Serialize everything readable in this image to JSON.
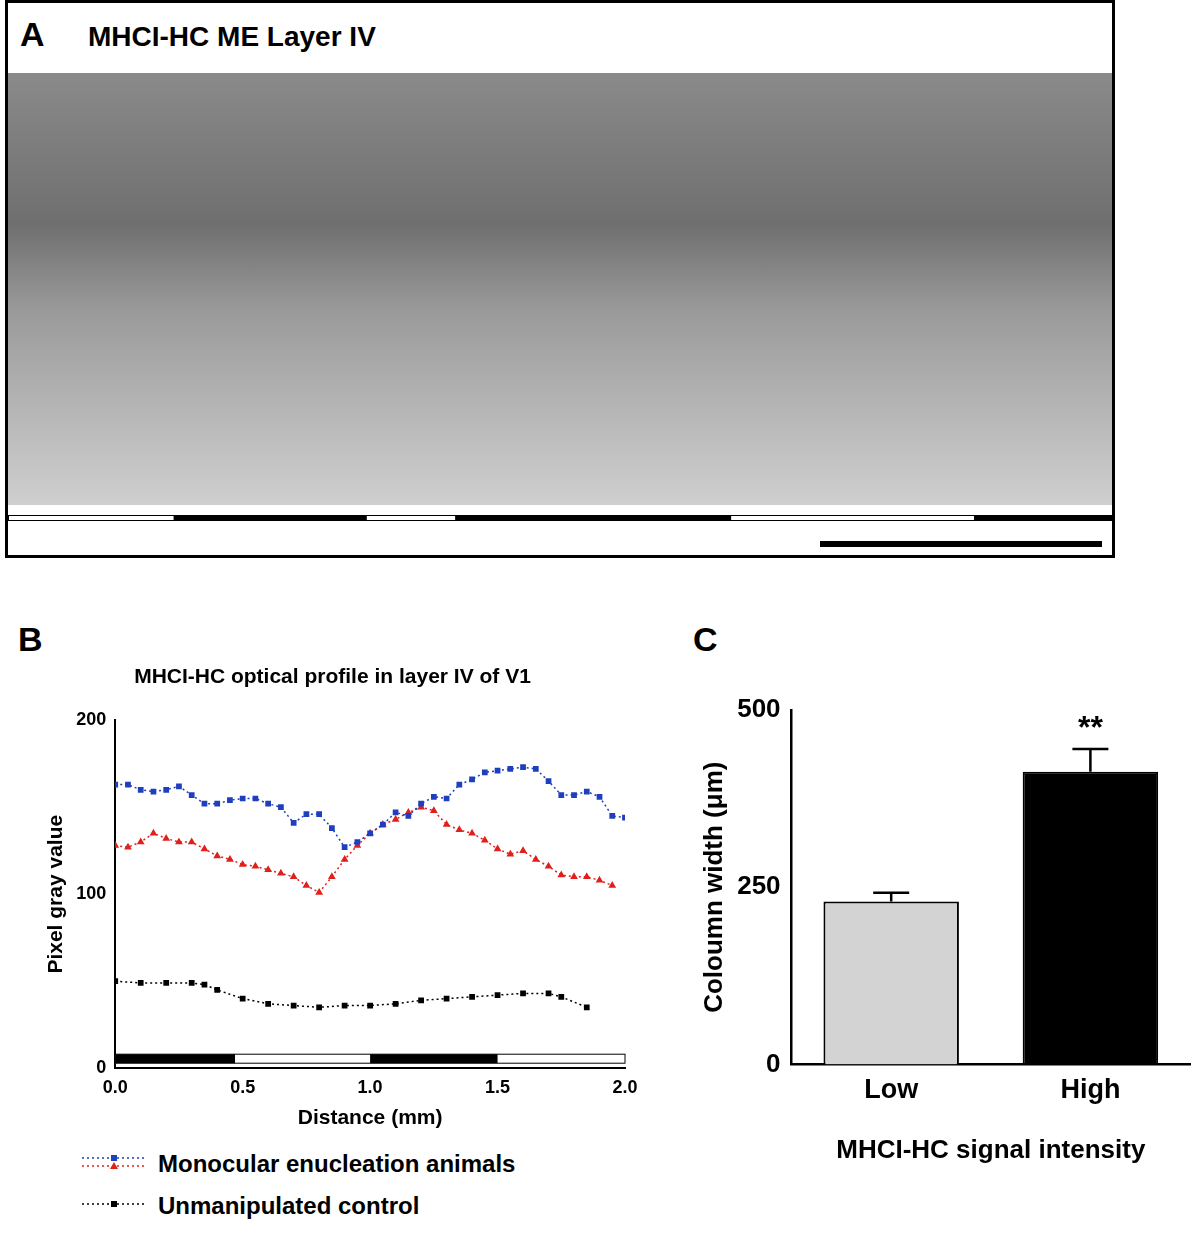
{
  "panel_a": {
    "label": "A",
    "title": "MHCI-HC ME Layer IV",
    "dark_bands_fraction": [
      [
        0.15,
        0.325
      ],
      [
        0.405,
        0.655
      ],
      [
        0.875,
        1.0
      ]
    ]
  },
  "chart_data": [
    {
      "label": "B",
      "type": "line",
      "title": "MHCI-HC optical profile in layer IV of V1",
      "x_label": "Distance (mm)",
      "y_label": "Pixel gray value",
      "xlim": [
        0,
        2
      ],
      "xticks": [
        {
          "value": 0,
          "label": "0.0"
        },
        {
          "value": 0.5,
          "label": "0.5"
        },
        {
          "value": 1,
          "label": "1.0"
        },
        {
          "value": 1.5,
          "label": "1.5"
        },
        {
          "value": 2,
          "label": "2.0"
        }
      ],
      "ylim": [
        0,
        200
      ],
      "yticks": [
        0,
        100,
        200
      ],
      "grid": false,
      "legend": "bottom",
      "dark_bands": [
        [
          0,
          0.47
        ],
        [
          1.0,
          1.5
        ]
      ],
      "series": [
        {
          "name": "Monocular enucleation animals",
          "color": "#1f3fbf",
          "marker": "square",
          "line_style": "dotted",
          "x": [
            0,
            0.05,
            0.1,
            0.15,
            0.2,
            0.25,
            0.3,
            0.35,
            0.4,
            0.45,
            0.5,
            0.55,
            0.6,
            0.65,
            0.7,
            0.75,
            0.8,
            0.85,
            0.9,
            0.95,
            1.0,
            1.05,
            1.1,
            1.15,
            1.2,
            1.25,
            1.3,
            1.35,
            1.4,
            1.45,
            1.5,
            1.55,
            1.6,
            1.65,
            1.7,
            1.75,
            1.8,
            1.85,
            1.9,
            1.95,
            2.0
          ],
          "values": [
            163,
            163,
            160,
            159,
            160,
            162,
            157,
            152,
            152,
            154,
            155,
            155,
            152,
            150,
            141,
            146,
            146,
            138,
            127,
            130,
            135,
            140,
            147,
            145,
            152,
            156,
            155,
            163,
            166,
            170,
            171,
            172,
            173,
            172,
            165,
            157,
            157,
            159,
            156,
            145,
            144
          ]
        },
        {
          "name": "Monocular enucleation animals",
          "color": "#e0201b",
          "marker": "triangle",
          "line_style": "dotted",
          "x": [
            0,
            0.05,
            0.1,
            0.15,
            0.2,
            0.25,
            0.3,
            0.35,
            0.4,
            0.45,
            0.5,
            0.55,
            0.6,
            0.65,
            0.7,
            0.75,
            0.8,
            0.85,
            0.9,
            0.95,
            1.0,
            1.05,
            1.1,
            1.15,
            1.2,
            1.25,
            1.3,
            1.35,
            1.4,
            1.45,
            1.5,
            1.55,
            1.6,
            1.65,
            1.7,
            1.75,
            1.8,
            1.85,
            1.9,
            1.95
          ],
          "values": [
            128,
            127,
            130,
            135,
            132,
            130,
            130,
            126,
            122,
            120,
            117,
            116,
            114,
            112,
            110,
            105,
            101,
            110,
            120,
            128,
            135,
            140,
            143,
            147,
            150,
            148,
            140,
            137,
            135,
            131,
            126,
            123,
            125,
            120,
            116,
            111,
            110,
            110,
            108,
            105
          ]
        },
        {
          "name": "Unmanipulated control",
          "color": "#000000",
          "marker": "square",
          "line_style": "dotted",
          "x": [
            0,
            0.1,
            0.2,
            0.3,
            0.35,
            0.4,
            0.5,
            0.6,
            0.7,
            0.8,
            0.9,
            1.0,
            1.1,
            1.2,
            1.3,
            1.4,
            1.5,
            1.6,
            1.7,
            1.75,
            1.85
          ],
          "values": [
            50,
            49,
            49,
            49,
            48,
            45,
            40,
            37,
            36,
            35,
            36,
            36,
            37,
            39,
            40,
            41,
            42,
            43,
            43,
            41,
            35
          ]
        }
      ]
    },
    {
      "label": "C",
      "type": "bar",
      "categories": [
        "Low",
        "High"
      ],
      "values": [
        230,
        413
      ],
      "errors": [
        12,
        32
      ],
      "colors": [
        "#d3d3d3",
        "#000000"
      ],
      "y_label": "Coloumn width (μm)",
      "x_label": "MHCI-HC signal intensity",
      "ylim": [
        0,
        500
      ],
      "yticks": [
        0,
        250,
        500
      ],
      "grid": false,
      "annotations": [
        {
          "category": "High",
          "text": "**"
        }
      ]
    }
  ]
}
